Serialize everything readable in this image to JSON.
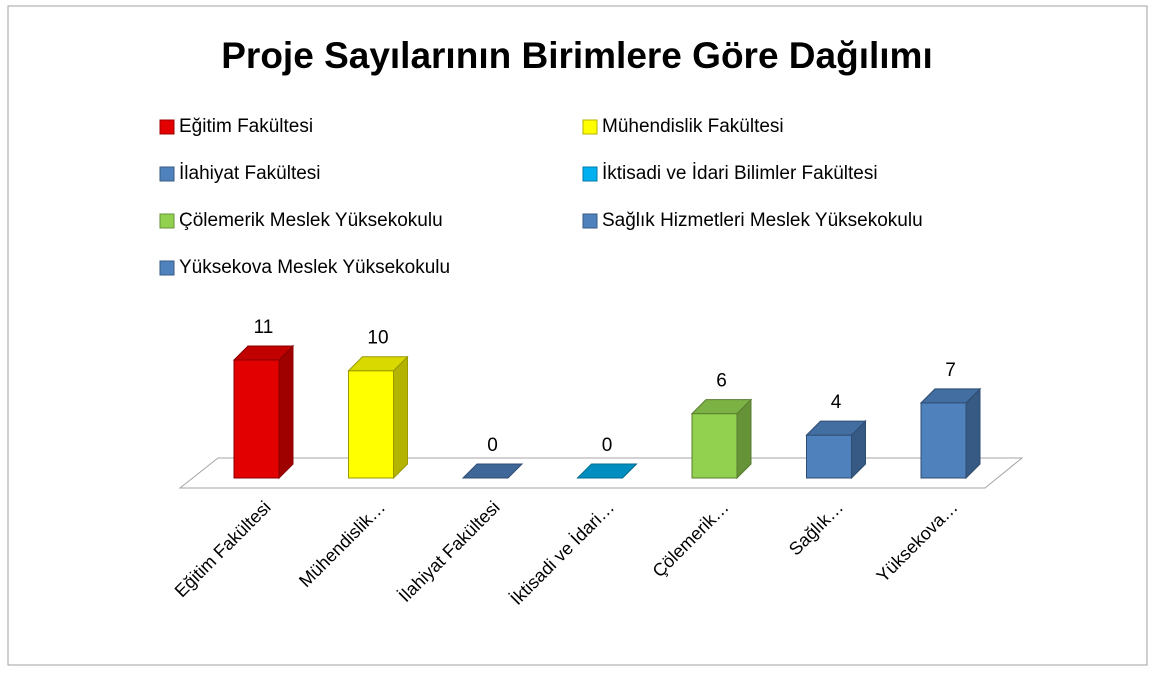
{
  "chart_data": {
    "type": "bar3d",
    "title": "Proje Sayılarının Birimlere Göre Dağılımı",
    "categories": [
      "Eğitim Fakültesi",
      "Mühendislik…",
      "İlahiyat Fakültesi",
      "İktisadi ve İdari…",
      "Çölemerik…",
      "Sağlık…",
      "Yüksekova…"
    ],
    "legend": [
      "Eğitim Fakültesi",
      "Mühendislik Fakültesi",
      "İlahiyat Fakültesi",
      "İktisadi ve İdari Bilimler Fakültesi",
      "Çölemerik Meslek Yüksekokulu",
      "Sağlık Hizmetleri Meslek Yüksekokulu",
      "Yüksekova Meslek Yüksekokulu"
    ],
    "values": [
      11,
      10,
      0,
      0,
      6,
      4,
      7
    ],
    "colors": [
      "#e30000",
      "#ffff00",
      "#4f81bd",
      "#00b0f0",
      "#92d050",
      "#4f81bd",
      "#4f81bd"
    ]
  }
}
